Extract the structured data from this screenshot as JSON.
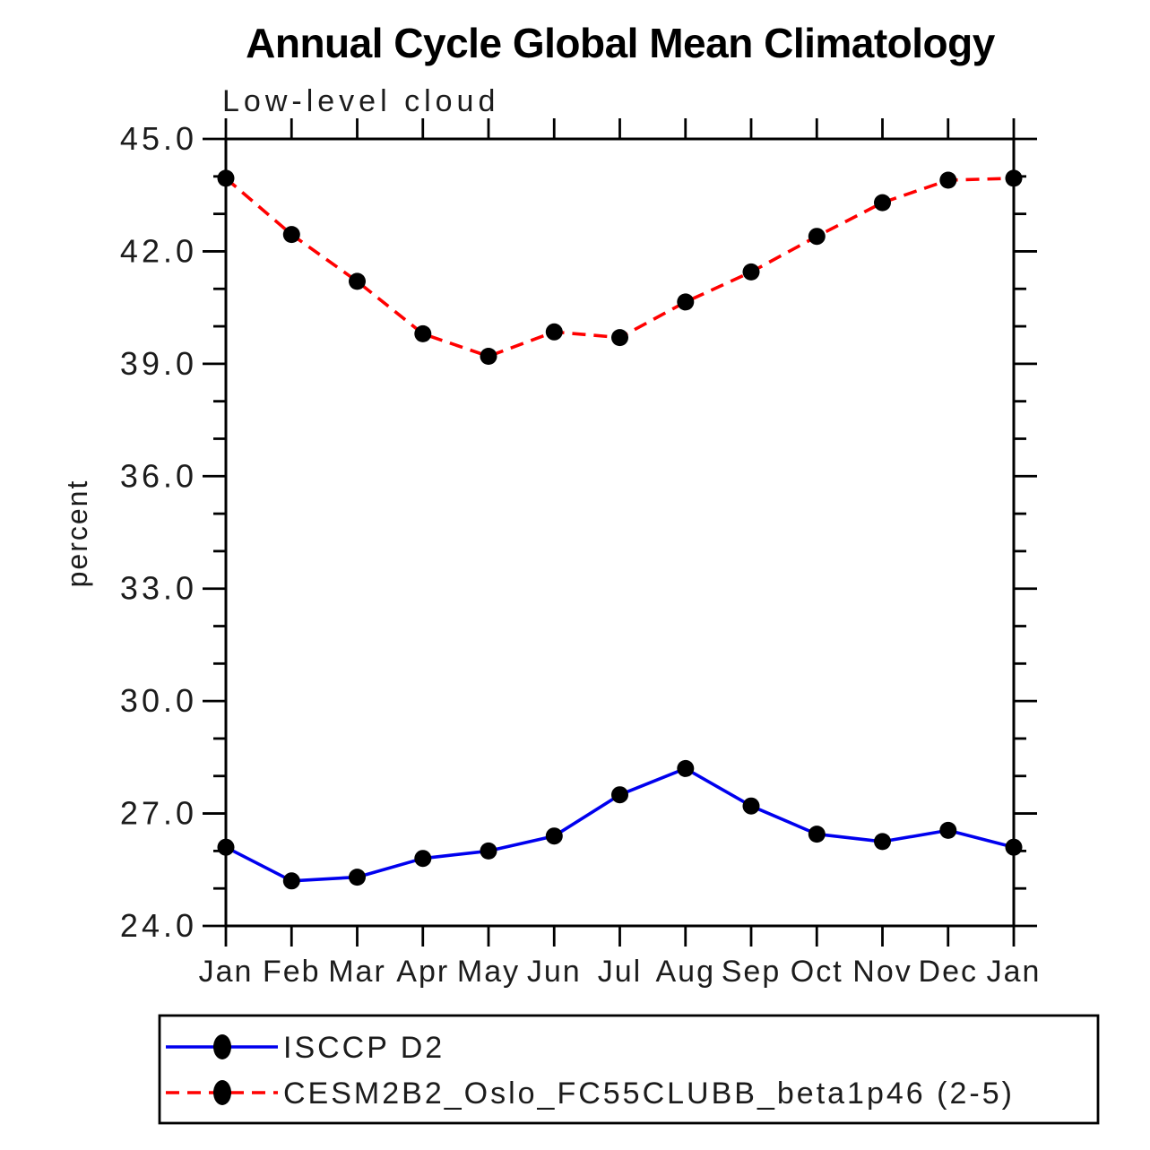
{
  "title": "Annual Cycle Global Mean Climatology",
  "subtitle": "Low-level cloud",
  "ylabel": "percent",
  "legend": {
    "entries": [
      {
        "label": "ISCCP D2"
      },
      {
        "label": "CESM2B2_Oslo_FC55CLUBB_beta1p46 (2-5)"
      }
    ]
  },
  "colors": {
    "series1": "#0000ee",
    "series2": "#ff0000",
    "marker": "#000000",
    "axis": "#000000"
  },
  "chart_data": {
    "type": "line",
    "title": "Annual Cycle Global Mean Climatology",
    "subtitle": "Low-level cloud",
    "xlabel": "",
    "ylabel": "percent",
    "categories": [
      "Jan",
      "Feb",
      "Mar",
      "Apr",
      "May",
      "Jun",
      "Jul",
      "Aug",
      "Sep",
      "Oct",
      "Nov",
      "Dec",
      "Jan"
    ],
    "ylim": [
      24.0,
      45.0
    ],
    "y_major_tick_step": 3.0,
    "y_minor_tick_step": 1.0,
    "ytick_values": [
      24.0,
      27.0,
      30.0,
      33.0,
      36.0,
      39.0,
      42.0,
      45.0
    ],
    "ytick_labels": [
      "24.0",
      "27.0",
      "30.0",
      "33.0",
      "36.0",
      "39.0",
      "42.0",
      "45.0"
    ],
    "grid": false,
    "legend_position": "bottom-left-box",
    "series": [
      {
        "name": "ISCCP D2",
        "color": "#0000ee",
        "line_style": "solid",
        "marker": "filled-circle",
        "marker_color": "#000000",
        "values": [
          26.1,
          25.2,
          25.3,
          25.8,
          26.0,
          26.4,
          27.5,
          28.2,
          27.2,
          26.45,
          26.25,
          26.55,
          26.1
        ]
      },
      {
        "name": "CESM2B2_Oslo_FC55CLUBB_beta1p46 (2-5)",
        "color": "#ff0000",
        "line_style": "dashed",
        "marker": "filled-circle",
        "marker_color": "#000000",
        "values": [
          43.95,
          42.45,
          41.2,
          39.8,
          39.2,
          39.85,
          39.7,
          40.65,
          41.45,
          42.4,
          43.3,
          43.9,
          43.95
        ]
      }
    ]
  }
}
